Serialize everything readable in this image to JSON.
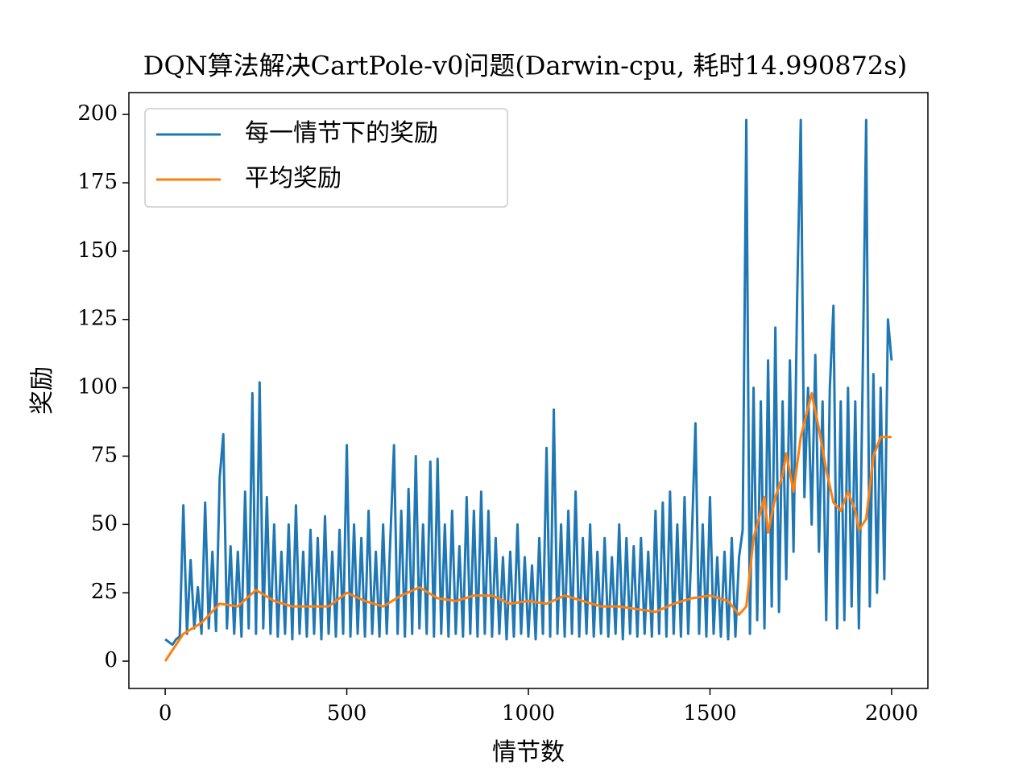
{
  "chart_data": {
    "type": "line",
    "title": "DQN算法解决CartPole-v0问题(Darwin-cpu, 耗时14.990872s)",
    "x_label": "情节数",
    "y_label": "奖励",
    "xlim": [
      -100,
      2100
    ],
    "ylim": [
      -10,
      208
    ],
    "xticks": [
      0,
      500,
      1000,
      1500,
      2000
    ],
    "yticks": [
      0,
      25,
      50,
      75,
      100,
      125,
      150,
      175,
      200
    ],
    "legend": "upper left",
    "series": [
      {
        "name": "每一情节下的奖励",
        "color": "#1f77b4",
        "x": [
          0,
          10,
          20,
          30,
          40,
          50,
          60,
          70,
          80,
          90,
          100,
          110,
          120,
          130,
          140,
          150,
          160,
          170,
          180,
          190,
          200,
          210,
          220,
          230,
          240,
          250,
          260,
          270,
          280,
          290,
          300,
          310,
          320,
          330,
          340,
          350,
          360,
          370,
          380,
          390,
          400,
          410,
          420,
          430,
          440,
          450,
          460,
          470,
          480,
          490,
          500,
          510,
          520,
          530,
          540,
          550,
          560,
          570,
          580,
          590,
          600,
          610,
          620,
          630,
          640,
          650,
          660,
          670,
          680,
          690,
          700,
          710,
          720,
          730,
          740,
          750,
          760,
          770,
          780,
          790,
          800,
          810,
          820,
          830,
          840,
          850,
          860,
          870,
          880,
          890,
          900,
          910,
          920,
          930,
          940,
          950,
          960,
          970,
          980,
          990,
          1000,
          1010,
          1020,
          1030,
          1040,
          1050,
          1060,
          1070,
          1080,
          1090,
          1100,
          1110,
          1120,
          1130,
          1140,
          1150,
          1160,
          1170,
          1180,
          1190,
          1200,
          1210,
          1220,
          1230,
          1240,
          1250,
          1260,
          1270,
          1280,
          1290,
          1300,
          1310,
          1320,
          1330,
          1340,
          1350,
          1360,
          1370,
          1380,
          1390,
          1400,
          1410,
          1420,
          1430,
          1440,
          1450,
          1460,
          1470,
          1480,
          1490,
          1500,
          1510,
          1520,
          1530,
          1540,
          1550,
          1560,
          1570,
          1580,
          1590,
          1600,
          1610,
          1620,
          1630,
          1640,
          1650,
          1660,
          1670,
          1680,
          1690,
          1700,
          1710,
          1720,
          1730,
          1740,
          1750,
          1760,
          1770,
          1780,
          1790,
          1800,
          1810,
          1820,
          1830,
          1840,
          1850,
          1860,
          1870,
          1880,
          1890,
          1900,
          1910,
          1920,
          1930,
          1940,
          1950,
          1960,
          1970,
          1980,
          1990,
          2000
        ],
        "values": [
          8,
          7,
          6,
          8,
          9,
          57,
          10,
          37,
          12,
          27,
          10,
          58,
          12,
          40,
          11,
          67,
          83,
          12,
          42,
          10,
          40,
          9,
          62,
          12,
          98,
          10,
          102,
          12,
          60,
          10,
          50,
          9,
          40,
          10,
          50,
          8,
          57,
          10,
          40,
          9,
          48,
          10,
          45,
          8,
          53,
          10,
          40,
          9,
          48,
          10,
          79,
          9,
          50,
          10,
          45,
          9,
          55,
          10,
          40,
          9,
          50,
          10,
          45,
          79,
          10,
          55,
          9,
          63,
          10,
          75,
          12,
          50,
          10,
          73,
          9,
          74,
          10,
          50,
          9,
          55,
          10,
          42,
          9,
          60,
          10,
          55,
          9,
          62,
          10,
          55,
          9,
          45,
          10,
          38,
          8,
          40,
          9,
          50,
          10,
          38,
          9,
          35,
          8,
          45,
          10,
          78,
          9,
          92,
          10,
          50,
          9,
          55,
          10,
          62,
          9,
          45,
          10,
          50,
          9,
          40,
          10,
          45,
          9,
          38,
          10,
          50,
          8,
          45,
          10,
          42,
          9,
          45,
          10,
          40,
          9,
          55,
          10,
          58,
          9,
          62,
          10,
          50,
          9,
          60,
          10,
          45,
          87,
          10,
          50,
          9,
          60,
          10,
          38,
          9,
          40,
          8,
          45,
          9,
          38,
          48,
          198,
          10,
          100,
          15,
          95,
          12,
          110,
          20,
          122,
          18,
          95,
          30,
          110,
          40,
          133,
          198,
          60,
          100,
          50,
          112,
          40,
          95,
          15,
          100,
          130,
          12,
          95,
          15,
          100,
          20,
          95,
          12,
          100,
          198,
          20,
          105,
          25,
          100,
          30,
          125,
          110
        ]
      },
      {
        "name": "平均奖励",
        "color": "#ff7f0e",
        "x": [
          0,
          50,
          100,
          150,
          200,
          250,
          300,
          350,
          400,
          450,
          500,
          550,
          600,
          650,
          700,
          750,
          800,
          850,
          900,
          950,
          1000,
          1050,
          1100,
          1150,
          1200,
          1250,
          1300,
          1350,
          1400,
          1450,
          1500,
          1550,
          1580,
          1600,
          1620,
          1650,
          1660,
          1680,
          1700,
          1710,
          1730,
          1750,
          1780,
          1800,
          1820,
          1840,
          1860,
          1880,
          1900,
          1910,
          1930,
          1950,
          1970,
          2000
        ],
        "values": [
          0,
          10,
          14,
          21,
          20,
          26,
          22,
          20,
          20,
          20,
          25,
          22,
          20,
          24,
          27,
          23,
          22,
          24,
          24,
          21,
          22,
          21,
          24,
          22,
          20,
          20,
          19,
          18,
          21,
          23,
          24,
          22,
          17,
          20,
          45,
          60,
          47,
          60,
          68,
          76,
          62,
          82,
          98,
          85,
          70,
          58,
          55,
          62,
          55,
          48,
          52,
          75,
          82,
          82
        ]
      }
    ]
  }
}
